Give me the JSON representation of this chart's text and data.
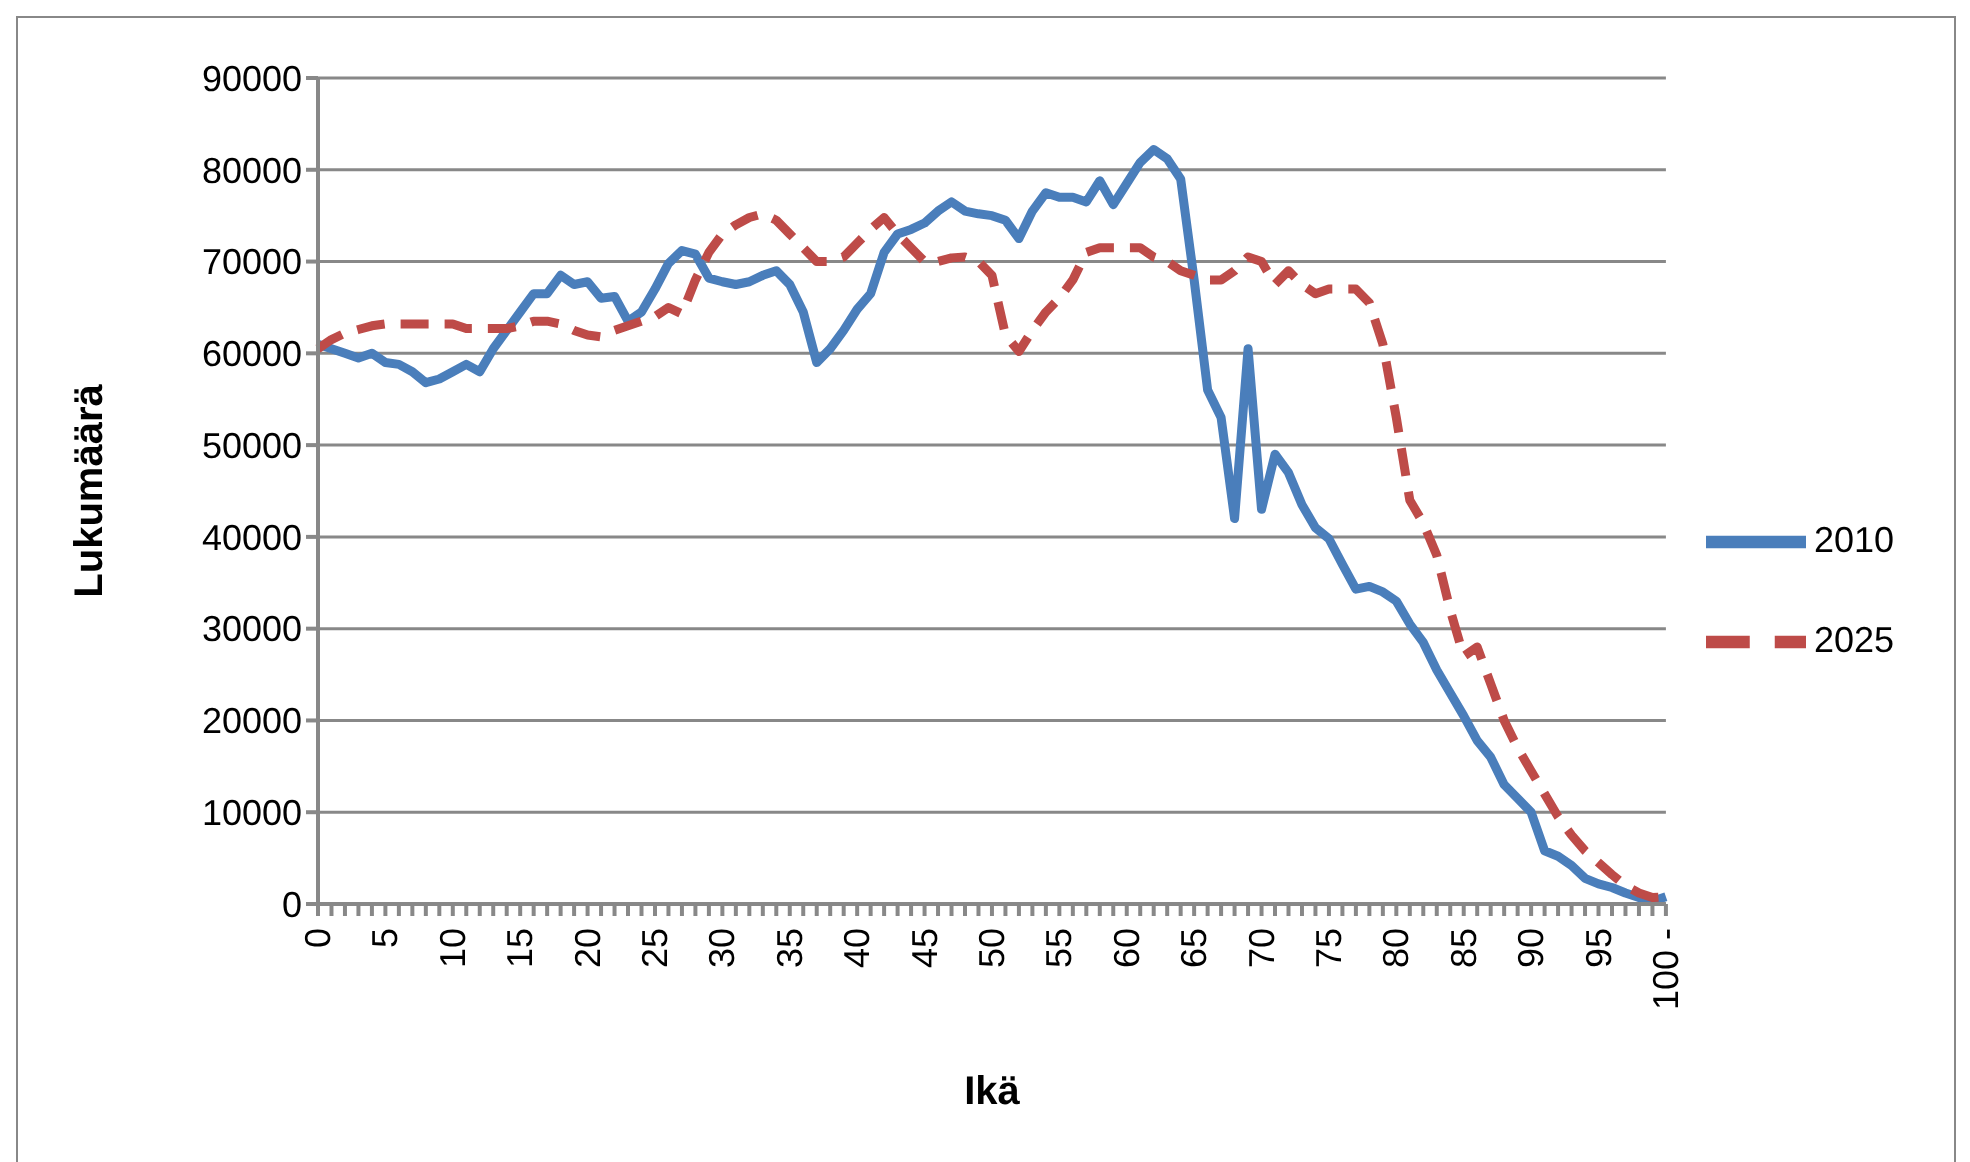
{
  "chart_data": {
    "type": "line",
    "xlabel": "Ikä",
    "ylabel": "Lukumäärä",
    "categories": [
      "0",
      null,
      null,
      null,
      null,
      "5",
      null,
      null,
      null,
      null,
      "10",
      null,
      null,
      null,
      null,
      "15",
      null,
      null,
      null,
      null,
      "20",
      null,
      null,
      null,
      null,
      "25",
      null,
      null,
      null,
      null,
      "30",
      null,
      null,
      null,
      null,
      "35",
      null,
      null,
      null,
      null,
      "40",
      null,
      null,
      null,
      null,
      "45",
      null,
      null,
      null,
      null,
      "50",
      null,
      null,
      null,
      null,
      "55",
      null,
      null,
      null,
      null,
      "60",
      null,
      null,
      null,
      null,
      "65",
      null,
      null,
      null,
      null,
      "70",
      null,
      null,
      null,
      null,
      "75",
      null,
      null,
      null,
      null,
      "80",
      null,
      null,
      null,
      null,
      "85",
      null,
      null,
      null,
      null,
      "90",
      null,
      null,
      null,
      null,
      "95",
      null,
      null,
      null,
      null,
      "100 -"
    ],
    "series": [
      {
        "name": "2010",
        "color": "#4a7ebb",
        "line_style": "solid",
        "values": [
          61000,
          60500,
          60000,
          59500,
          60000,
          59000,
          58800,
          58000,
          56800,
          57200,
          58000,
          58800,
          58000,
          60500,
          62500,
          64500,
          66500,
          66500,
          68500,
          67500,
          67800,
          66000,
          66200,
          63500,
          64500,
          67000,
          69800,
          71200,
          70800,
          68200,
          67800,
          67500,
          67800,
          68500,
          69000,
          67500,
          64500,
          59000,
          60500,
          62500,
          64800,
          66500,
          71000,
          73000,
          73500,
          74200,
          75500,
          76500,
          75500,
          75200,
          75000,
          74500,
          72500,
          75500,
          77500,
          77000,
          77000,
          76500,
          78800,
          76200,
          78500,
          80800,
          82200,
          81200,
          79000,
          68000,
          56000,
          53000,
          42000,
          60500,
          43000,
          49000,
          47000,
          43500,
          41000,
          39800,
          37000,
          34300,
          34600,
          34000,
          33000,
          30500,
          28500,
          25500,
          23000,
          20500,
          17800,
          16000,
          13000,
          11500,
          10000,
          5800,
          5200,
          4200,
          2800,
          2200,
          1800,
          1200,
          700,
          300,
          800
        ]
      },
      {
        "name": "2025",
        "color": "#be4b48",
        "line_style": "dashed",
        "values": [
          60500,
          61500,
          62200,
          62600,
          63000,
          63200,
          63200,
          63200,
          63200,
          63200,
          63200,
          62700,
          62700,
          62700,
          62700,
          63000,
          63500,
          63500,
          63200,
          62500,
          62000,
          61800,
          62500,
          63000,
          63500,
          64000,
          65000,
          64300,
          68000,
          71000,
          73000,
          74000,
          74800,
          75200,
          74500,
          73000,
          71500,
          70000,
          70000,
          70500,
          72000,
          73500,
          74800,
          73000,
          71500,
          70000,
          70000,
          70400,
          70500,
          70000,
          68500,
          62000,
          60200,
          62500,
          64500,
          66000,
          68000,
          71000,
          71500,
          71500,
          71500,
          71500,
          70500,
          70000,
          69000,
          68500,
          68000,
          68000,
          69000,
          70500,
          70000,
          67500,
          69000,
          67500,
          66500,
          67000,
          67000,
          67000,
          65500,
          61000,
          53000,
          44000,
          41500,
          38000,
          32000,
          27000,
          28000,
          24000,
          20000,
          17000,
          14500,
          12000,
          9500,
          7500,
          5800,
          4500,
          3200,
          2000,
          1200,
          700,
          800
        ]
      }
    ],
    "ylim": [
      0,
      90000
    ],
    "yticks": [
      0,
      10000,
      20000,
      30000,
      40000,
      50000,
      60000,
      70000,
      80000,
      90000
    ],
    "grid": "y",
    "legend": "right"
  }
}
